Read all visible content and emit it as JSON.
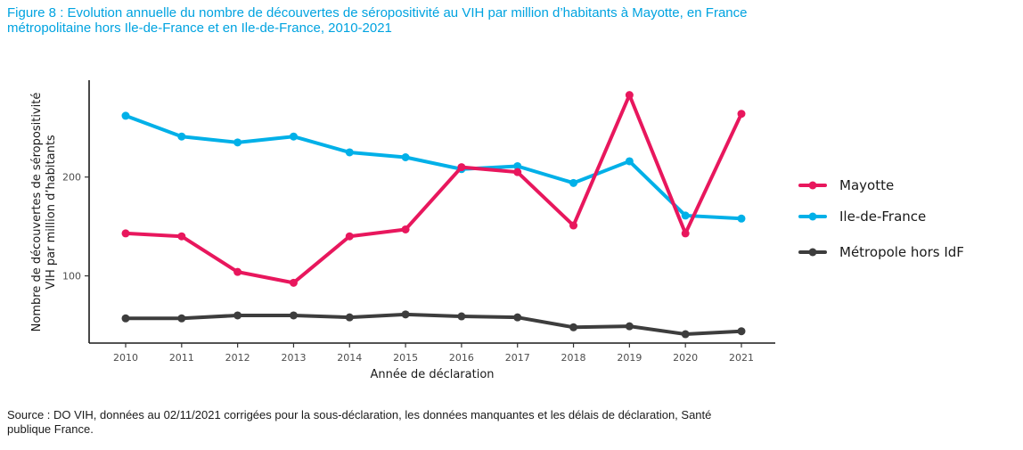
{
  "figure": {
    "title_line1": "Figure 8 : Evolution annuelle du nombre de découvertes de séropositivité au VIH par million d’habitants à Mayotte, en France",
    "title_line2": "métropolitaine hors Ile-de-France et en Ile-de-France, 2010-2021",
    "source_line1": "Source : DO VIH, données au 02/11/2021 corrigées pour la sous-déclaration, les données manquantes et les délais de déclaration, Santé",
    "source_line2": "publique France."
  },
  "chart_data": {
    "type": "line",
    "x": [
      "2010",
      "2011",
      "2012",
      "2013",
      "2014",
      "2015",
      "2016",
      "2017",
      "2018",
      "2019",
      "2020",
      "2021"
    ],
    "xlabel": "Année de déclaration",
    "ylabel_line1": "Nombre de découvertes de séropositivité",
    "ylabel_line2": "VIH par million d’habitants",
    "yticks": [
      100,
      200
    ],
    "ylim": [
      32,
      298
    ],
    "grid": false,
    "legend_position": "right",
    "series": [
      {
        "name": "Mayotte",
        "color": "#e8175d",
        "values": [
          143,
          140,
          104,
          93,
          140,
          147,
          210,
          205,
          151,
          283,
          143,
          264
        ]
      },
      {
        "name": "Ile-de-France",
        "color": "#00b0e8",
        "values": [
          262,
          241,
          235,
          241,
          225,
          220,
          208,
          211,
          194,
          216,
          161,
          158
        ]
      },
      {
        "name": "Métropole hors IdF",
        "color": "#3d3d3d",
        "values": [
          57,
          57,
          60,
          60,
          58,
          61,
          59,
          58,
          48,
          49,
          41,
          44
        ]
      }
    ]
  }
}
